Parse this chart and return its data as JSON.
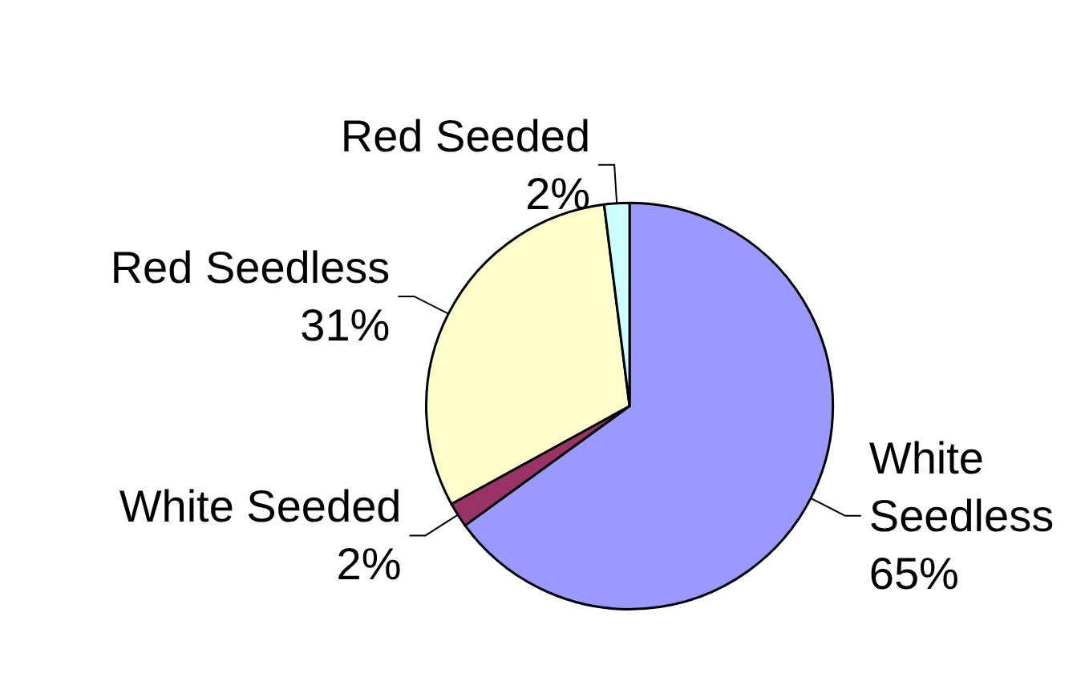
{
  "chart_data": {
    "type": "pie",
    "categories": [
      "White Seedless",
      "White Seeded",
      "Red Seedless",
      "Red Seeded"
    ],
    "values": [
      65,
      2,
      31,
      2
    ],
    "value_labels": [
      "65%",
      "2%",
      "31%",
      "2%"
    ],
    "colors": [
      "#9999ff",
      "#993366",
      "#ffffcc",
      "#ccffff"
    ]
  }
}
